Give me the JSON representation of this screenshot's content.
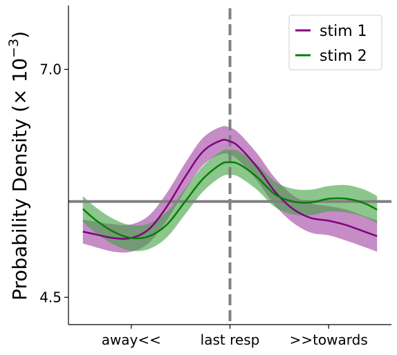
{
  "chart_data": {
    "type": "line",
    "ylabel": "Probability Density (× 10",
    "ylabel_exponent": "−3",
    "ylabel_suffix": ")",
    "ylim": [
      4.2,
      7.7
    ],
    "yticks": [
      {
        "value": 4.5,
        "label": "4.5"
      },
      {
        "value": 7.0,
        "label": "7.0"
      }
    ],
    "xlim": [
      -0.9,
      0.9
    ],
    "xticks": [
      {
        "value": -0.55,
        "label": "away<<"
      },
      {
        "value": 0.0,
        "label": "last resp"
      },
      {
        "value": 0.55,
        "label": ">>towards"
      }
    ],
    "hline": {
      "value": 5.55,
      "color": "#808080"
    },
    "vline": {
      "value": 0.0,
      "color": "#808080",
      "style": "dashed"
    },
    "legend": {
      "placement": "top-right"
    },
    "series": [
      {
        "name": "stim 1",
        "color": "#800080",
        "band_color": "#a040a0",
        "x": [
          -0.82,
          -0.75,
          -0.65,
          -0.55,
          -0.45,
          -0.35,
          -0.25,
          -0.15,
          -0.05,
          0.0,
          0.05,
          0.15,
          0.25,
          0.35,
          0.45,
          0.55,
          0.65,
          0.75,
          0.82
        ],
        "y": [
          5.22,
          5.19,
          5.15,
          5.15,
          5.25,
          5.5,
          5.82,
          6.1,
          6.22,
          6.21,
          6.15,
          5.93,
          5.66,
          5.47,
          5.37,
          5.34,
          5.29,
          5.22,
          5.17
        ],
        "err": [
          0.13,
          0.14,
          0.15,
          0.15,
          0.15,
          0.15,
          0.15,
          0.15,
          0.15,
          0.15,
          0.15,
          0.15,
          0.15,
          0.15,
          0.16,
          0.16,
          0.17,
          0.17,
          0.17
        ]
      },
      {
        "name": "stim 2",
        "color": "#008000",
        "band_color": "#40a040",
        "x": [
          -0.82,
          -0.75,
          -0.65,
          -0.55,
          -0.45,
          -0.35,
          -0.25,
          -0.15,
          -0.05,
          0.0,
          0.05,
          0.15,
          0.25,
          0.35,
          0.45,
          0.55,
          0.65,
          0.75,
          0.82
        ],
        "y": [
          5.47,
          5.35,
          5.22,
          5.15,
          5.17,
          5.3,
          5.55,
          5.8,
          5.96,
          5.98,
          5.96,
          5.82,
          5.63,
          5.55,
          5.54,
          5.58,
          5.58,
          5.53,
          5.46
        ],
        "err": [
          0.14,
          0.14,
          0.14,
          0.14,
          0.14,
          0.14,
          0.14,
          0.14,
          0.14,
          0.14,
          0.14,
          0.14,
          0.14,
          0.14,
          0.14,
          0.14,
          0.15,
          0.15,
          0.15
        ]
      }
    ]
  }
}
